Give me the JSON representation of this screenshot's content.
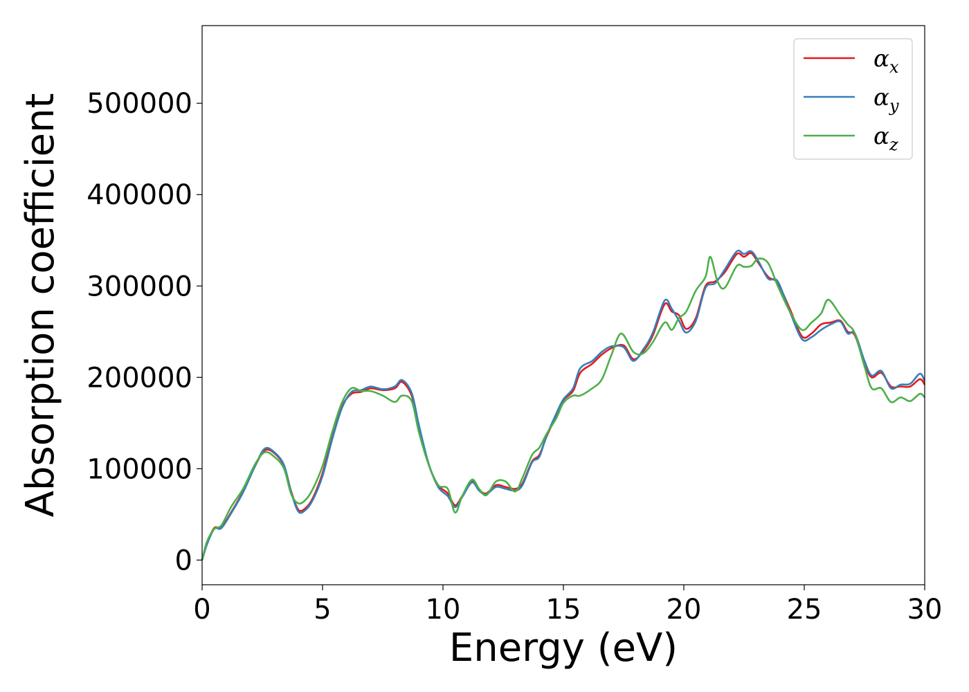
{
  "chart_data": {
    "type": "line",
    "title": "",
    "xlabel": "Energy (eV)",
    "ylabel": "Absorption coefficient",
    "xlim": [
      0,
      30
    ],
    "ylim": [
      -27000,
      585000
    ],
    "x_ticks": [
      0,
      5,
      10,
      15,
      20,
      25,
      30
    ],
    "x_tick_labels": [
      "0",
      "5",
      "10",
      "15",
      "20",
      "25",
      "30"
    ],
    "y_ticks": [
      0,
      100000,
      200000,
      300000,
      400000,
      500000
    ],
    "y_tick_labels": [
      "0",
      "100000",
      "200000",
      "300000",
      "400000",
      "500000"
    ],
    "grid": false,
    "legend_position": "top-right",
    "series": [
      {
        "name": "α_x",
        "legend_symbol": "α",
        "legend_sub": "x",
        "color": "#e41a1c",
        "points": [
          [
            0,
            0
          ],
          [
            0.2,
            18000
          ],
          [
            0.5,
            35000
          ],
          [
            0.8,
            36000
          ],
          [
            1.2,
            52000
          ],
          [
            1.7,
            75000
          ],
          [
            2.2,
            103000
          ],
          [
            2.6,
            120000
          ],
          [
            3.0,
            117000
          ],
          [
            3.4,
            103000
          ],
          [
            3.7,
            75000
          ],
          [
            4.0,
            55000
          ],
          [
            4.3,
            57000
          ],
          [
            4.6,
            68000
          ],
          [
            5.0,
            95000
          ],
          [
            5.4,
            135000
          ],
          [
            5.8,
            168000
          ],
          [
            6.2,
            182000
          ],
          [
            6.6,
            184000
          ],
          [
            7.0,
            188000
          ],
          [
            7.5,
            186000
          ],
          [
            8.0,
            188000
          ],
          [
            8.3,
            195000
          ],
          [
            8.7,
            180000
          ],
          [
            9.0,
            145000
          ],
          [
            9.4,
            105000
          ],
          [
            9.8,
            82000
          ],
          [
            10.2,
            73000
          ],
          [
            10.5,
            60000
          ],
          [
            10.8,
            70000
          ],
          [
            11.2,
            86000
          ],
          [
            11.5,
            77000
          ],
          [
            11.8,
            73000
          ],
          [
            12.2,
            82000
          ],
          [
            12.6,
            80000
          ],
          [
            13.0,
            78000
          ],
          [
            13.3,
            84000
          ],
          [
            13.7,
            108000
          ],
          [
            14.0,
            115000
          ],
          [
            14.3,
            135000
          ],
          [
            14.7,
            158000
          ],
          [
            15.0,
            175000
          ],
          [
            15.4,
            185000
          ],
          [
            15.7,
            205000
          ],
          [
            16.2,
            215000
          ],
          [
            16.6,
            225000
          ],
          [
            17.0,
            232000
          ],
          [
            17.5,
            235000
          ],
          [
            17.9,
            220000
          ],
          [
            18.3,
            228000
          ],
          [
            18.7,
            245000
          ],
          [
            19.2,
            280000
          ],
          [
            19.5,
            272000
          ],
          [
            19.8,
            268000
          ],
          [
            20.1,
            253000
          ],
          [
            20.5,
            265000
          ],
          [
            20.9,
            300000
          ],
          [
            21.3,
            305000
          ],
          [
            21.7,
            315000
          ],
          [
            22.2,
            335000
          ],
          [
            22.5,
            332000
          ],
          [
            22.8,
            336000
          ],
          [
            23.1,
            325000
          ],
          [
            23.5,
            310000
          ],
          [
            23.9,
            303000
          ],
          [
            24.4,
            275000
          ],
          [
            24.9,
            245000
          ],
          [
            25.3,
            248000
          ],
          [
            25.7,
            258000
          ],
          [
            26.1,
            260000
          ],
          [
            26.5,
            262000
          ],
          [
            26.8,
            250000
          ],
          [
            27.1,
            246000
          ],
          [
            27.5,
            215000
          ],
          [
            27.8,
            200000
          ],
          [
            28.2,
            205000
          ],
          [
            28.6,
            190000
          ],
          [
            29.0,
            190000
          ],
          [
            29.4,
            190000
          ],
          [
            29.8,
            198000
          ],
          [
            30,
            192000
          ]
        ]
      },
      {
        "name": "α_y",
        "legend_symbol": "α",
        "legend_sub": "y",
        "color": "#377eb8",
        "points": [
          [
            0,
            0
          ],
          [
            0.2,
            17000
          ],
          [
            0.5,
            34000
          ],
          [
            0.8,
            35000
          ],
          [
            1.2,
            51000
          ],
          [
            1.7,
            74000
          ],
          [
            2.2,
            103000
          ],
          [
            2.6,
            122000
          ],
          [
            3.0,
            118000
          ],
          [
            3.4,
            104000
          ],
          [
            3.7,
            74000
          ],
          [
            4.0,
            53000
          ],
          [
            4.3,
            55000
          ],
          [
            4.6,
            66000
          ],
          [
            5.0,
            92000
          ],
          [
            5.4,
            132000
          ],
          [
            5.8,
            166000
          ],
          [
            6.2,
            184000
          ],
          [
            6.6,
            186000
          ],
          [
            7.0,
            190000
          ],
          [
            7.5,
            187000
          ],
          [
            8.0,
            190000
          ],
          [
            8.3,
            197000
          ],
          [
            8.7,
            183000
          ],
          [
            9.0,
            148000
          ],
          [
            9.4,
            106000
          ],
          [
            9.8,
            80000
          ],
          [
            10.2,
            70000
          ],
          [
            10.5,
            58000
          ],
          [
            10.8,
            69000
          ],
          [
            11.2,
            85000
          ],
          [
            11.5,
            76000
          ],
          [
            11.8,
            72000
          ],
          [
            12.2,
            80000
          ],
          [
            12.6,
            78000
          ],
          [
            13.0,
            76000
          ],
          [
            13.3,
            82000
          ],
          [
            13.7,
            107000
          ],
          [
            14.0,
            113000
          ],
          [
            14.3,
            136000
          ],
          [
            14.7,
            160000
          ],
          [
            15.0,
            176000
          ],
          [
            15.4,
            188000
          ],
          [
            15.7,
            210000
          ],
          [
            16.2,
            218000
          ],
          [
            16.6,
            228000
          ],
          [
            17.0,
            234000
          ],
          [
            17.5,
            233000
          ],
          [
            17.9,
            218000
          ],
          [
            18.3,
            230000
          ],
          [
            18.7,
            248000
          ],
          [
            19.2,
            284000
          ],
          [
            19.5,
            275000
          ],
          [
            19.8,
            262000
          ],
          [
            20.1,
            249000
          ],
          [
            20.5,
            262000
          ],
          [
            20.9,
            298000
          ],
          [
            21.3,
            303000
          ],
          [
            21.7,
            318000
          ],
          [
            22.2,
            338000
          ],
          [
            22.5,
            335000
          ],
          [
            22.8,
            338000
          ],
          [
            23.1,
            327000
          ],
          [
            23.5,
            308000
          ],
          [
            23.9,
            305000
          ],
          [
            24.4,
            272000
          ],
          [
            24.9,
            242000
          ],
          [
            25.3,
            244000
          ],
          [
            25.7,
            252000
          ],
          [
            26.1,
            258000
          ],
          [
            26.5,
            261000
          ],
          [
            26.8,
            248000
          ],
          [
            27.1,
            248000
          ],
          [
            27.5,
            218000
          ],
          [
            27.8,
            202000
          ],
          [
            28.2,
            207000
          ],
          [
            28.6,
            188000
          ],
          [
            29.0,
            192000
          ],
          [
            29.4,
            193000
          ],
          [
            29.8,
            204000
          ],
          [
            30,
            196000
          ]
        ]
      },
      {
        "name": "α_z",
        "legend_symbol": "α",
        "legend_sub": "z",
        "color": "#4daf4a",
        "points": [
          [
            0,
            0
          ],
          [
            0.2,
            20000
          ],
          [
            0.5,
            34000
          ],
          [
            0.8,
            38000
          ],
          [
            1.2,
            58000
          ],
          [
            1.7,
            78000
          ],
          [
            2.2,
            105000
          ],
          [
            2.6,
            118000
          ],
          [
            3.0,
            113000
          ],
          [
            3.4,
            100000
          ],
          [
            3.7,
            72000
          ],
          [
            4.0,
            62000
          ],
          [
            4.3,
            66000
          ],
          [
            4.6,
            78000
          ],
          [
            5.0,
            103000
          ],
          [
            5.4,
            140000
          ],
          [
            5.8,
            172000
          ],
          [
            6.2,
            188000
          ],
          [
            6.6,
            185000
          ],
          [
            7.0,
            185000
          ],
          [
            7.5,
            180000
          ],
          [
            8.0,
            173000
          ],
          [
            8.3,
            180000
          ],
          [
            8.7,
            174000
          ],
          [
            9.0,
            140000
          ],
          [
            9.4,
            105000
          ],
          [
            9.8,
            82000
          ],
          [
            10.2,
            78000
          ],
          [
            10.5,
            52000
          ],
          [
            10.8,
            70000
          ],
          [
            11.2,
            88000
          ],
          [
            11.5,
            78000
          ],
          [
            11.8,
            71000
          ],
          [
            12.2,
            86000
          ],
          [
            12.6,
            86000
          ],
          [
            13.0,
            75000
          ],
          [
            13.3,
            90000
          ],
          [
            13.7,
            115000
          ],
          [
            14.0,
            123000
          ],
          [
            14.3,
            138000
          ],
          [
            14.7,
            155000
          ],
          [
            15.0,
            172000
          ],
          [
            15.4,
            180000
          ],
          [
            15.7,
            180000
          ],
          [
            16.2,
            188000
          ],
          [
            16.6,
            198000
          ],
          [
            17.0,
            225000
          ],
          [
            17.4,
            248000
          ],
          [
            17.9,
            228000
          ],
          [
            18.3,
            226000
          ],
          [
            18.7,
            238000
          ],
          [
            19.2,
            260000
          ],
          [
            19.5,
            252000
          ],
          [
            19.8,
            265000
          ],
          [
            20.1,
            272000
          ],
          [
            20.5,
            295000
          ],
          [
            20.9,
            310000
          ],
          [
            21.1,
            332000
          ],
          [
            21.4,
            305000
          ],
          [
            21.7,
            298000
          ],
          [
            22.2,
            322000
          ],
          [
            22.5,
            321000
          ],
          [
            22.8,
            322000
          ],
          [
            23.1,
            330000
          ],
          [
            23.5,
            325000
          ],
          [
            23.9,
            300000
          ],
          [
            24.4,
            272000
          ],
          [
            24.9,
            252000
          ],
          [
            25.3,
            260000
          ],
          [
            25.7,
            270000
          ],
          [
            26.0,
            285000
          ],
          [
            26.5,
            268000
          ],
          [
            26.8,
            258000
          ],
          [
            27.1,
            248000
          ],
          [
            27.5,
            212000
          ],
          [
            27.8,
            188000
          ],
          [
            28.2,
            188000
          ],
          [
            28.6,
            173000
          ],
          [
            29.0,
            178000
          ],
          [
            29.4,
            174000
          ],
          [
            29.8,
            182000
          ],
          [
            30,
            178000
          ]
        ]
      }
    ]
  }
}
